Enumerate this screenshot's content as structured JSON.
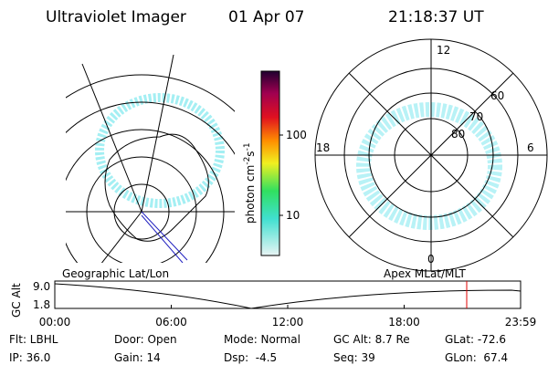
{
  "header": {
    "instrument": "Ultraviolet Imager",
    "date": "01 Apr 07",
    "time": "21:18:37 UT"
  },
  "colorbar": {
    "label_parts": [
      "photon cm",
      "-2",
      "s",
      "-1"
    ],
    "ticks": [
      "100",
      "10"
    ]
  },
  "polar": {
    "mlt_labels": [
      "12",
      "18",
      "6",
      "0"
    ],
    "lat_labels": [
      "60",
      "70",
      "80"
    ]
  },
  "timeline": {
    "left_title": "Geographic Lat/Lon",
    "right_title": "Apex MLat/MLT",
    "y_label": "GC Alt",
    "y_ticks": [
      "9.0",
      "1.8"
    ],
    "x_ticks": [
      "00:00",
      "06:00",
      "12:00",
      "18:00",
      "23:59"
    ]
  },
  "footer": {
    "rows": [
      [
        "Flt: LBHL",
        "Door: Open",
        "Mode: Normal",
        "GC Alt: 8.7 Re",
        "GLat: -72.6"
      ],
      [
        "IP: 36.0",
        "Gain: 14",
        "Dsp:  -4.5",
        "Seq: 39",
        "GLon:  67.4"
      ]
    ]
  }
}
